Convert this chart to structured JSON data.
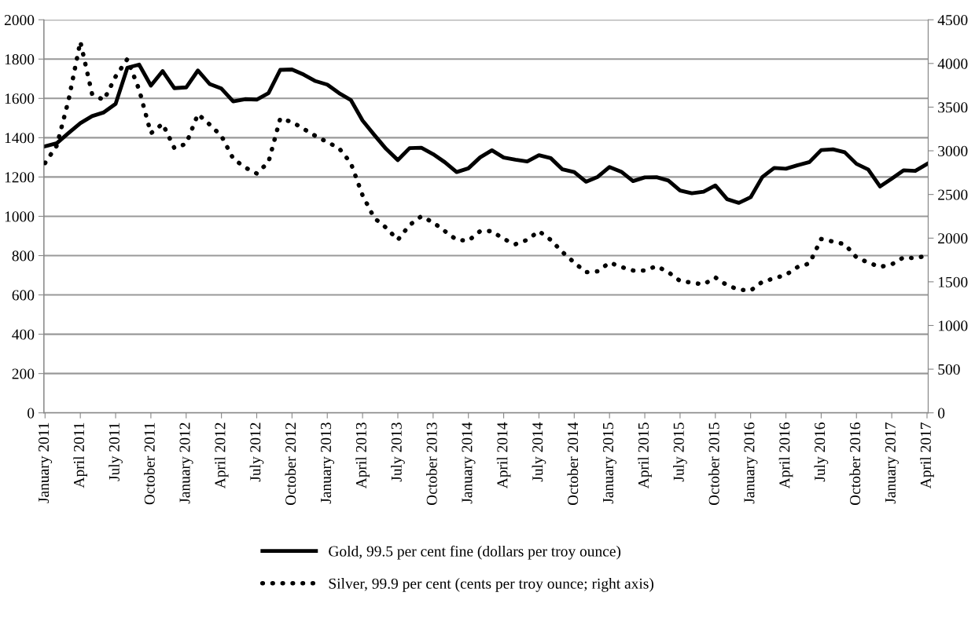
{
  "chart_data": {
    "type": "line",
    "categories": [
      "January 2011",
      null,
      null,
      "April 2011",
      null,
      null,
      "July 2011",
      null,
      null,
      "October 2011",
      null,
      null,
      "January 2012",
      null,
      null,
      "April 2012",
      null,
      null,
      "July 2012",
      null,
      null,
      "October 2012",
      null,
      null,
      "January 2013",
      null,
      null,
      "April 2013",
      null,
      null,
      "July 2013",
      null,
      null,
      "October 2013",
      null,
      null,
      "January 2014",
      null,
      null,
      "April 2014",
      null,
      null,
      "July 2014",
      null,
      null,
      "October 2014",
      null,
      null,
      "January 2015",
      null,
      null,
      "April 2015",
      null,
      null,
      "July 2015",
      null,
      null,
      "October 2015",
      null,
      null,
      "January 2016",
      null,
      null,
      "April 2016",
      null,
      null,
      "July 2016",
      null,
      null,
      "October 2016",
      null,
      null,
      "January 2017",
      null,
      null,
      "April 2017"
    ],
    "series": [
      {
        "name": "Gold, 99.5 per cent fine (dollars per troy ounce)",
        "color": "#000000",
        "line_style": "solid",
        "values": [
          1356,
          1372,
          1424,
          1474,
          1510,
          1529,
          1572,
          1756,
          1772,
          1665,
          1739,
          1652,
          1656,
          1742,
          1673,
          1650,
          1585,
          1596,
          1594,
          1627,
          1745,
          1747,
          1721,
          1688,
          1670,
          1627,
          1592,
          1487,
          1414,
          1343,
          1286,
          1347,
          1349,
          1316,
          1275,
          1225,
          1244,
          1300,
          1336,
          1299,
          1288,
          1279,
          1311,
          1296,
          1239,
          1225,
          1176,
          1201,
          1251,
          1227,
          1179,
          1198,
          1199,
          1182,
          1131,
          1117,
          1125,
          1157,
          1087,
          1068,
          1097,
          1200,
          1246,
          1242,
          1260,
          1276,
          1337,
          1341,
          1326,
          1267,
          1238,
          1152,
          1192,
          1234,
          1231,
          1266
        ]
      },
      {
        "name": "Silver, 99.9 per cent (cents per troy ounce; right axis)",
        "color": "#000000",
        "line_style": "dotted",
        "axis": "y2",
        "values": [
          2860,
          3060,
          3580,
          4250,
          3650,
          3580,
          3850,
          4050,
          3700,
          3200,
          3310,
          3030,
          3080,
          3420,
          3300,
          3170,
          2910,
          2810,
          2740,
          2870,
          3370,
          3330,
          3250,
          3170,
          3100,
          3030,
          2860,
          2490,
          2230,
          2120,
          1980,
          2150,
          2250,
          2180,
          2080,
          1980,
          1970,
          2080,
          2080,
          1990,
          1930,
          1980,
          2080,
          1980,
          1840,
          1720,
          1610,
          1620,
          1720,
          1670,
          1630,
          1630,
          1680,
          1610,
          1510,
          1490,
          1470,
          1550,
          1460,
          1410,
          1400,
          1500,
          1540,
          1580,
          1670,
          1710,
          1990,
          1960,
          1930,
          1780,
          1720,
          1670,
          1700,
          1780,
          1770,
          1800
        ]
      }
    ],
    "ylim": [
      0,
      2000
    ],
    "yticks": [
      0,
      200,
      400,
      600,
      800,
      1000,
      1200,
      1400,
      1600,
      1800,
      2000
    ],
    "y2lim": [
      0,
      4500
    ],
    "y2ticks": [
      0,
      500,
      1000,
      1500,
      2000,
      2500,
      3000,
      3500,
      4000,
      4500
    ],
    "grid": "y",
    "legend": "bottom"
  }
}
